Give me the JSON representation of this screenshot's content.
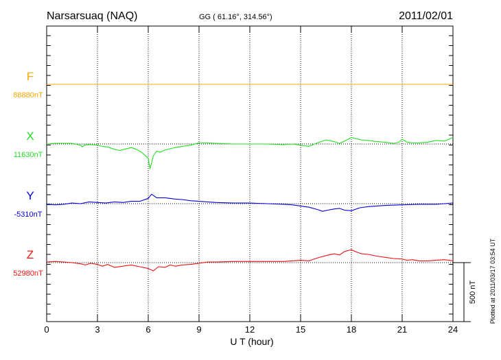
{
  "header": {
    "station": "Narsarsuaq (NAQ)",
    "coords": "GG ( 61.16°, 314.56°)",
    "date": "2011/02/01"
  },
  "plotted_note": "Plotted at 2011/03/17 03:54 UT",
  "scale_bar_label": "500 nT",
  "chart_data": {
    "type": "line",
    "title": "Narsarsuaq (NAQ)",
    "xlabel": "U T (hour)",
    "xlim": [
      0,
      24
    ],
    "x_ticks": [
      0,
      3,
      6,
      9,
      12,
      15,
      18,
      21,
      24
    ],
    "x_tick_labels": [
      "0",
      "3",
      "6",
      "9",
      "12",
      "15",
      "18",
      "21",
      "24"
    ],
    "grid": true,
    "scale_bar_nT": 500,
    "series": [
      {
        "name": "F",
        "baseline_label": "88880nT",
        "baseline_nT": 88880,
        "color": "#f5a800",
        "x": [
          0,
          24
        ],
        "dev": [
          0,
          0
        ]
      },
      {
        "name": "X",
        "baseline_label": "11630nT",
        "baseline_nT": 11630,
        "color": "#22dd22",
        "x": [
          0,
          0.5,
          1,
          1.5,
          2,
          2.1,
          2.2,
          2.5,
          3,
          3.3,
          3.6,
          4,
          4.3,
          4.6,
          5,
          5.3,
          5.6,
          5.8,
          6,
          6.1,
          6.2,
          6.3,
          6.5,
          6.7,
          7,
          7.3,
          7.6,
          8,
          8.5,
          9,
          9.5,
          10,
          11,
          12,
          13,
          14,
          14.5,
          15,
          15.5,
          16,
          16.5,
          17,
          17.3,
          17.6,
          18,
          18.3,
          18.6,
          19,
          19.5,
          20,
          20.5,
          20.8,
          21,
          21.3,
          21.6,
          22,
          22.5,
          23,
          23.5,
          24
        ],
        "dev": [
          0,
          5,
          5,
          5,
          -10,
          -25,
          -10,
          -5,
          -10,
          -20,
          -25,
          -45,
          -55,
          -45,
          -30,
          -45,
          -70,
          -95,
          -120,
          -210,
          -160,
          -100,
          -60,
          -70,
          -50,
          -40,
          -30,
          -20,
          -10,
          10,
          10,
          5,
          0,
          0,
          0,
          -5,
          0,
          -10,
          -20,
          10,
          35,
          20,
          5,
          25,
          55,
          45,
          35,
          30,
          20,
          15,
          5,
          15,
          40,
          15,
          10,
          10,
          15,
          30,
          25,
          55
        ]
      },
      {
        "name": "Y",
        "baseline_label": "-5310nT",
        "baseline_nT": -5310,
        "color": "#0000dd",
        "x": [
          0,
          0.5,
          1,
          1.5,
          2,
          2.5,
          3,
          3.5,
          4,
          4.5,
          5,
          5.5,
          6,
          6.2,
          6.5,
          7,
          7.5,
          8,
          8.5,
          9,
          10,
          11,
          12,
          13,
          14,
          14.5,
          15,
          15.5,
          16,
          16.3,
          16.6,
          17,
          17.3,
          17.6,
          18,
          18.5,
          19,
          19.5,
          20,
          21,
          22,
          23,
          23.5,
          24
        ],
        "dev": [
          -5,
          -10,
          -5,
          5,
          0,
          15,
          10,
          5,
          15,
          10,
          20,
          20,
          45,
          80,
          50,
          50,
          40,
          35,
          25,
          20,
          10,
          5,
          5,
          0,
          -5,
          -10,
          -20,
          -30,
          -50,
          -65,
          -55,
          -45,
          -40,
          -55,
          -60,
          -35,
          -25,
          -20,
          -15,
          -10,
          -5,
          -5,
          0,
          5
        ]
      },
      {
        "name": "Z",
        "baseline_label": "52980nT",
        "baseline_nT": 52980,
        "color": "#ee1111",
        "x": [
          0,
          0.5,
          1,
          1.5,
          2,
          2.3,
          2.6,
          3,
          3.3,
          3.6,
          4,
          4.5,
          5,
          5.5,
          6,
          6.3,
          6.6,
          7,
          7.3,
          7.6,
          8,
          8.5,
          9,
          9.5,
          10,
          11,
          12,
          13,
          14,
          15,
          15.5,
          16,
          16.5,
          17,
          17.3,
          17.6,
          18,
          18.3,
          18.6,
          19,
          19.5,
          20,
          20.5,
          21,
          21.3,
          21.6,
          22,
          22.5,
          23,
          23.5,
          24
        ],
        "dev": [
          5,
          10,
          5,
          0,
          -10,
          -20,
          -5,
          -15,
          -30,
          -15,
          -40,
          -30,
          -20,
          -35,
          -50,
          -70,
          -35,
          -40,
          -20,
          -30,
          -20,
          -15,
          -5,
          5,
          5,
          10,
          10,
          10,
          10,
          20,
          15,
          40,
          60,
          75,
          65,
          95,
          110,
          90,
          75,
          70,
          55,
          45,
          35,
          30,
          20,
          25,
          15,
          15,
          20,
          25,
          15
        ]
      }
    ]
  }
}
